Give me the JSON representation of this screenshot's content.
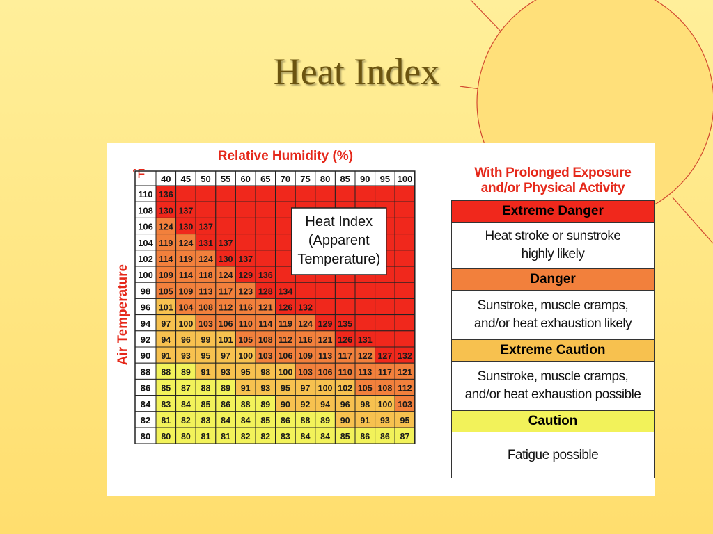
{
  "slide": {
    "title": "Heat Index"
  },
  "colors": {
    "extreme_danger": "#f0281c",
    "danger": "#f2803c",
    "extreme_caution": "#f7c14f",
    "caution": "#f2f25a",
    "title": "#6b5410",
    "accent": "#e5281a"
  },
  "legend": {
    "heading_line1": "With Prolonged Exposure",
    "heading_line2": "and/or Physical Activity",
    "levels": [
      {
        "name": "Extreme Danger",
        "color": "#f0281c",
        "desc_lines": [
          "Heat stroke or sunstroke",
          "highly likely"
        ]
      },
      {
        "name": "Danger",
        "color": "#f2803c",
        "desc_lines": [
          "Sunstroke, muscle cramps,",
          "and/or heat exhaustion likely"
        ]
      },
      {
        "name": "Extreme Caution",
        "color": "#f7c14f",
        "desc_lines": [
          "Sunstroke, muscle cramps,",
          "and/or heat exhaustion possible"
        ]
      },
      {
        "name": "Caution",
        "color": "#f2f25a",
        "desc_lines": [
          "Fatigue possible"
        ]
      }
    ]
  },
  "chart_data": {
    "type": "heatmap",
    "title": "Relative Humidity (%)",
    "xlabel": "Relative Humidity (%)",
    "ylabel": "Air Temperature",
    "unit_label": "°F",
    "annotation": [
      "Heat Index",
      "(Apparent",
      "Temperature)"
    ],
    "x": [
      40,
      45,
      50,
      55,
      60,
      65,
      70,
      75,
      80,
      85,
      90,
      95,
      100
    ],
    "y": [
      110,
      108,
      106,
      104,
      102,
      100,
      98,
      96,
      94,
      92,
      90,
      88,
      86,
      84,
      82,
      80
    ],
    "values": [
      [
        136,
        null,
        null,
        null,
        null,
        null,
        null,
        null,
        null,
        null,
        null,
        null,
        null
      ],
      [
        130,
        137,
        null,
        null,
        null,
        null,
        null,
        null,
        null,
        null,
        null,
        null,
        null
      ],
      [
        124,
        130,
        137,
        null,
        null,
        null,
        null,
        null,
        null,
        null,
        null,
        null,
        null
      ],
      [
        119,
        124,
        131,
        137,
        null,
        null,
        null,
        null,
        null,
        null,
        null,
        null,
        null
      ],
      [
        114,
        119,
        124,
        130,
        137,
        null,
        null,
        null,
        null,
        null,
        null,
        null,
        null
      ],
      [
        109,
        114,
        118,
        124,
        129,
        136,
        null,
        null,
        null,
        null,
        null,
        null,
        null
      ],
      [
        105,
        109,
        113,
        117,
        123,
        128,
        134,
        null,
        null,
        null,
        null,
        null,
        null
      ],
      [
        101,
        104,
        108,
        112,
        116,
        121,
        126,
        132,
        null,
        null,
        null,
        null,
        null
      ],
      [
        97,
        100,
        103,
        106,
        110,
        114,
        119,
        124,
        129,
        135,
        null,
        null,
        null
      ],
      [
        94,
        96,
        99,
        101,
        105,
        108,
        112,
        116,
        121,
        126,
        131,
        null,
        null
      ],
      [
        91,
        93,
        95,
        97,
        100,
        103,
        106,
        109,
        113,
        117,
        122,
        127,
        132
      ],
      [
        88,
        89,
        91,
        93,
        95,
        98,
        100,
        103,
        106,
        110,
        113,
        117,
        121
      ],
      [
        85,
        87,
        88,
        89,
        91,
        93,
        95,
        97,
        100,
        102,
        105,
        108,
        112
      ],
      [
        83,
        84,
        85,
        86,
        88,
        89,
        90,
        92,
        94,
        96,
        98,
        100,
        103
      ],
      [
        81,
        82,
        83,
        84,
        84,
        85,
        86,
        88,
        89,
        90,
        91,
        93,
        95
      ],
      [
        80,
        80,
        81,
        81,
        82,
        82,
        83,
        84,
        84,
        85,
        86,
        86,
        87
      ]
    ],
    "categories_thresholds_F": {
      "caution": 80,
      "extreme_caution": 90,
      "danger": 103,
      "extreme_danger": 125
    }
  }
}
